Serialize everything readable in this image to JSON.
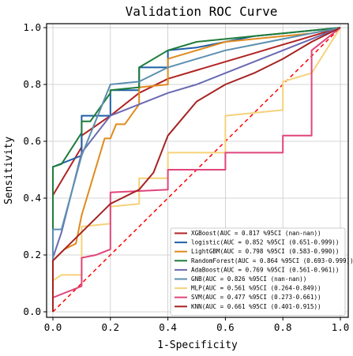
{
  "chart_data": {
    "type": "line",
    "title": "Validation ROC Curve",
    "xlabel": "1-Specificity",
    "ylabel": "Sensitivity",
    "xlim": [
      0,
      1
    ],
    "ylim": [
      0,
      1
    ],
    "xticks": [
      "0.0",
      "0.2",
      "0.4",
      "0.6",
      "0.8",
      "1.0"
    ],
    "yticks": [
      "0.0",
      "0.2",
      "0.4",
      "0.6",
      "0.8",
      "1.0"
    ],
    "grid": true,
    "legend_position": "bottom-right",
    "reference_line": {
      "x": [
        0,
        1
      ],
      "y": [
        0,
        1
      ],
      "color": "#ff0000",
      "style": "dashed"
    },
    "series": [
      {
        "name": "XGBoost(AUC = 0.817 %95CI (nan-nan))",
        "color": "#b22222",
        "x": [
          0,
          0,
          0.1,
          0.1,
          0.2,
          0.3,
          0.4,
          0.5,
          0.6,
          0.7,
          0.8,
          0.9,
          1.0
        ],
        "y": [
          0,
          0.41,
          0.58,
          0.62,
          0.69,
          0.77,
          0.82,
          0.85,
          0.88,
          0.91,
          0.94,
          0.97,
          1.0
        ]
      },
      {
        "name": "logistic(AUC = 0.852 %95CI (0.651-0.999))",
        "color": "#1f5fa8",
        "x": [
          0,
          0,
          0.1,
          0.1,
          0.1,
          0.2,
          0.2,
          0.3,
          0.3,
          0.4,
          0.4,
          0.5,
          0.6,
          0.7,
          0.8,
          0.9,
          1.0
        ],
        "y": [
          0,
          0.51,
          0.55,
          0.67,
          0.69,
          0.69,
          0.78,
          0.78,
          0.86,
          0.86,
          0.92,
          0.93,
          0.95,
          0.97,
          0.98,
          0.99,
          1.0
        ]
      },
      {
        "name": "LightGBM(AUC = 0.798 %95CI (0.583-0.990))",
        "color": "#e08a1e",
        "x": [
          0,
          0,
          0.04,
          0.08,
          0.1,
          0.18,
          0.2,
          0.22,
          0.25,
          0.3,
          0.3,
          0.4,
          0.4,
          0.5,
          0.6,
          0.8,
          0.9,
          0.95,
          1.0
        ],
        "y": [
          0,
          0.18,
          0.22,
          0.24,
          0.34,
          0.61,
          0.61,
          0.66,
          0.66,
          0.73,
          0.79,
          0.8,
          0.89,
          0.92,
          0.95,
          0.97,
          0.98,
          0.99,
          1.0
        ]
      },
      {
        "name": "RandomForest(AUC = 0.864 %95CI (0.693-0.999))",
        "color": "#1e7d3a",
        "x": [
          0,
          0,
          0.03,
          0.1,
          0.1,
          0.13,
          0.2,
          0.2,
          0.3,
          0.3,
          0.4,
          0.5,
          0.6,
          0.7,
          0.8,
          0.9,
          1.0
        ],
        "y": [
          0,
          0.51,
          0.52,
          0.63,
          0.67,
          0.67,
          0.77,
          0.78,
          0.79,
          0.86,
          0.92,
          0.95,
          0.96,
          0.97,
          0.98,
          0.99,
          1.0
        ]
      },
      {
        "name": "AdaBoost(AUC = 0.769 %95CI (0.561-0.961))",
        "color": "#6a6ab2",
        "x": [
          0,
          0,
          0.03,
          0.1,
          0.2,
          0.3,
          0.4,
          0.5,
          0.6,
          0.7,
          0.8,
          0.9,
          1.0
        ],
        "y": [
          0,
          0.19,
          0.28,
          0.56,
          0.69,
          0.73,
          0.77,
          0.8,
          0.84,
          0.88,
          0.92,
          0.96,
          1.0
        ]
      },
      {
        "name": "GNB(AUC = 0.826 %95CI (nan-nan))",
        "color": "#5b8fb0",
        "x": [
          0,
          0,
          0.03,
          0.1,
          0.1,
          0.2,
          0.2,
          0.3,
          0.4,
          0.5,
          0.6,
          0.7,
          0.8,
          0.9,
          1.0
        ],
        "y": [
          0,
          0.29,
          0.29,
          0.55,
          0.55,
          0.8,
          0.8,
          0.81,
          0.86,
          0.89,
          0.92,
          0.94,
          0.96,
          0.98,
          1.0
        ]
      },
      {
        "name": "MLP(AUC = 0.561 %95CI (0.264-0.849))",
        "color": "#f5d27a",
        "x": [
          0,
          0,
          0.03,
          0.1,
          0.1,
          0.2,
          0.2,
          0.3,
          0.3,
          0.4,
          0.4,
          0.6,
          0.6,
          0.8,
          0.8,
          0.9,
          1.0
        ],
        "y": [
          0,
          0.11,
          0.13,
          0.13,
          0.3,
          0.31,
          0.37,
          0.38,
          0.47,
          0.47,
          0.56,
          0.56,
          0.69,
          0.71,
          0.81,
          0.84,
          1.0
        ]
      },
      {
        "name": "SVM(AUC = 0.477 %95CI (0.273-0.661))",
        "color": "#e0457b",
        "x": [
          0,
          0,
          0.1,
          0.1,
          0.15,
          0.2,
          0.2,
          0.4,
          0.4,
          0.6,
          0.6,
          0.8,
          0.8,
          0.9,
          0.9,
          1.0
        ],
        "y": [
          0,
          0.05,
          0.09,
          0.19,
          0.2,
          0.22,
          0.42,
          0.43,
          0.5,
          0.5,
          0.56,
          0.56,
          0.62,
          0.62,
          0.92,
          1.0
        ]
      },
      {
        "name": "KNN(AUC = 0.661 %95CI (0.401-0.915))",
        "color": "#a62222",
        "x": [
          0,
          0,
          0.1,
          0.2,
          0.3,
          0.35,
          0.4,
          0.5,
          0.6,
          0.7,
          0.8,
          0.9,
          1.0
        ],
        "y": [
          0,
          0.18,
          0.28,
          0.38,
          0.43,
          0.49,
          0.62,
          0.74,
          0.8,
          0.84,
          0.89,
          0.95,
          1.0
        ]
      }
    ]
  }
}
